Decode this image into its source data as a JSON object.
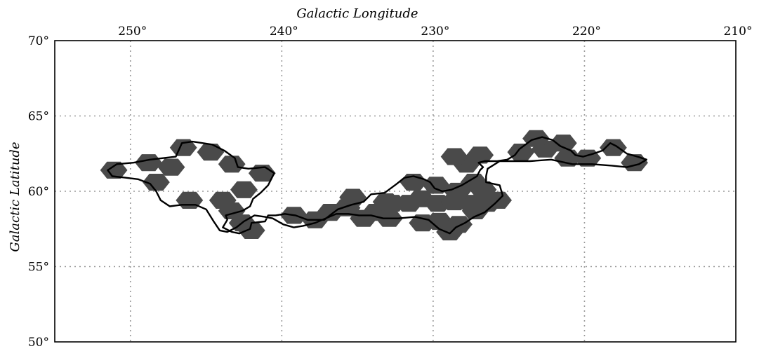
{
  "chart_data": {
    "type": "scatter",
    "projection": "sky map (longitude increases to the left)",
    "xlabel": "Galactic Longitude",
    "ylabel": "Galactic Latitude",
    "xlim": [
      255,
      210
    ],
    "ylim": [
      50,
      70
    ],
    "x_ticks": [
      250,
      240,
      230,
      220,
      210
    ],
    "y_ticks": [
      70,
      65,
      60,
      55,
      50
    ],
    "x_tick_labels": [
      "250°",
      "240°",
      "230°",
      "220°",
      "210°"
    ],
    "y_tick_labels": [
      "70°",
      "65°",
      "60°",
      "55°",
      "50°"
    ],
    "grid": true,
    "colors": {
      "field": "#4a4a4a",
      "outline": "#000000",
      "grid": "#9a9a9a"
    },
    "series": [
      {
        "role": "observed fields (hexagonal footprints)",
        "shape": "hexagon",
        "field_radius_deg": 0.9,
        "points": [
          [
            251.1,
            61.4
          ],
          [
            248.8,
            61.9
          ],
          [
            247.3,
            61.6
          ],
          [
            248.3,
            60.6
          ],
          [
            246.5,
            62.9
          ],
          [
            244.7,
            62.6
          ],
          [
            243.3,
            61.8
          ],
          [
            241.3,
            61.2
          ],
          [
            242.5,
            60.1
          ],
          [
            246.1,
            59.4
          ],
          [
            243.9,
            59.4
          ],
          [
            243.3,
            58.7
          ],
          [
            242.6,
            57.9
          ],
          [
            242.0,
            57.4
          ],
          [
            239.2,
            58.4
          ],
          [
            237.8,
            58.1
          ],
          [
            236.8,
            58.6
          ],
          [
            235.7,
            58.9
          ],
          [
            234.6,
            58.2
          ],
          [
            233.8,
            58.6
          ],
          [
            232.9,
            58.2
          ],
          [
            232.7,
            59.2
          ],
          [
            235.3,
            59.6
          ],
          [
            233.1,
            59.3
          ],
          [
            231.6,
            59.2
          ],
          [
            230.8,
            59.5
          ],
          [
            229.7,
            59.2
          ],
          [
            228.6,
            59.3
          ],
          [
            227.5,
            59.2
          ],
          [
            226.4,
            59.2
          ],
          [
            225.7,
            59.4
          ],
          [
            231.3,
            60.6
          ],
          [
            229.8,
            60.4
          ],
          [
            227.3,
            60.6
          ],
          [
            226.7,
            60.1
          ],
          [
            228.4,
            60.0
          ],
          [
            227.2,
            58.7
          ],
          [
            229.6,
            58.0
          ],
          [
            230.7,
            57.9
          ],
          [
            228.3,
            57.8
          ],
          [
            228.9,
            57.3
          ],
          [
            227.8,
            61.8
          ],
          [
            228.6,
            62.3
          ],
          [
            226.9,
            62.4
          ],
          [
            224.2,
            62.6
          ],
          [
            221.1,
            62.2
          ],
          [
            222.6,
            62.8
          ],
          [
            223.2,
            63.5
          ],
          [
            221.4,
            63.2
          ],
          [
            219.8,
            62.2
          ],
          [
            218.1,
            62.9
          ],
          [
            216.7,
            61.9
          ]
        ]
      },
      {
        "role": "survey footprint outline",
        "points": [
          [
            251.5,
            61.4
          ],
          [
            250.9,
            61.8
          ],
          [
            249.8,
            61.9
          ],
          [
            248.7,
            62.1
          ],
          [
            247.0,
            62.3
          ],
          [
            246.6,
            63.2
          ],
          [
            245.9,
            63.3
          ],
          [
            244.6,
            63.1
          ],
          [
            243.8,
            62.7
          ],
          [
            243.1,
            62.2
          ],
          [
            242.9,
            61.6
          ],
          [
            242.2,
            61.5
          ],
          [
            241.1,
            61.6
          ],
          [
            240.5,
            61.2
          ],
          [
            240.7,
            60.8
          ],
          [
            240.9,
            60.4
          ],
          [
            241.4,
            59.9
          ],
          [
            241.9,
            59.5
          ],
          [
            242.1,
            59.0
          ],
          [
            242.6,
            58.7
          ],
          [
            243.7,
            58.4
          ],
          [
            243.6,
            58.1
          ],
          [
            243.9,
            57.6
          ],
          [
            243.3,
            57.3
          ],
          [
            242.8,
            57.2
          ],
          [
            242.1,
            57.5
          ],
          [
            242.0,
            57.9
          ],
          [
            241.1,
            58.0
          ],
          [
            240.9,
            58.4
          ],
          [
            240.4,
            58.4
          ],
          [
            239.8,
            58.5
          ],
          [
            239.1,
            58.4
          ],
          [
            238.3,
            58.1
          ],
          [
            237.2,
            58.1
          ],
          [
            236.7,
            58.5
          ],
          [
            236.3,
            58.8
          ],
          [
            235.4,
            59.1
          ],
          [
            234.6,
            59.3
          ],
          [
            234.1,
            59.8
          ],
          [
            233.2,
            59.9
          ],
          [
            232.4,
            60.5
          ],
          [
            231.9,
            60.9
          ],
          [
            231.3,
            61.0
          ],
          [
            230.6,
            60.8
          ],
          [
            230.2,
            60.6
          ],
          [
            229.9,
            60.2
          ],
          [
            229.4,
            60.0
          ],
          [
            228.8,
            60.1
          ],
          [
            228.1,
            60.4
          ],
          [
            227.6,
            60.7
          ],
          [
            227.1,
            61.0
          ],
          [
            226.9,
            61.4
          ],
          [
            226.7,
            61.6
          ],
          [
            227.0,
            61.9
          ],
          [
            226.6,
            62.0
          ],
          [
            225.8,
            62.0
          ],
          [
            225.1,
            62.1
          ],
          [
            224.6,
            62.4
          ],
          [
            224.3,
            62.8
          ],
          [
            223.5,
            63.4
          ],
          [
            222.8,
            63.6
          ],
          [
            222.1,
            63.4
          ],
          [
            221.6,
            63.0
          ],
          [
            220.9,
            62.7
          ],
          [
            220.6,
            62.4
          ],
          [
            220.1,
            62.3
          ],
          [
            219.4,
            62.5
          ],
          [
            218.8,
            62.7
          ],
          [
            218.3,
            63.2
          ],
          [
            217.9,
            63.0
          ],
          [
            217.2,
            62.5
          ],
          [
            216.5,
            62.3
          ],
          [
            215.9,
            62.1
          ],
          [
            216.4,
            61.8
          ],
          [
            217.2,
            61.6
          ],
          [
            218.2,
            61.7
          ],
          [
            219.5,
            61.8
          ],
          [
            220.8,
            61.8
          ],
          [
            222.2,
            62.1
          ],
          [
            223.6,
            62.0
          ],
          [
            224.7,
            62.0
          ],
          [
            225.6,
            62.0
          ],
          [
            226.4,
            61.5
          ],
          [
            226.5,
            61.0
          ],
          [
            226.5,
            60.6
          ],
          [
            225.6,
            60.4
          ],
          [
            225.4,
            59.7
          ],
          [
            225.9,
            59.2
          ],
          [
            226.6,
            58.6
          ],
          [
            227.3,
            58.3
          ],
          [
            227.9,
            57.9
          ],
          [
            228.5,
            57.6
          ],
          [
            228.9,
            57.2
          ],
          [
            229.6,
            57.5
          ],
          [
            230.3,
            58.1
          ],
          [
            231.2,
            58.3
          ],
          [
            232.3,
            58.2
          ],
          [
            233.3,
            58.2
          ],
          [
            234.1,
            58.4
          ],
          [
            234.9,
            58.4
          ],
          [
            235.6,
            58.5
          ],
          [
            236.4,
            58.5
          ],
          [
            237.1,
            58.2
          ],
          [
            237.8,
            57.9
          ],
          [
            238.6,
            57.7
          ],
          [
            239.2,
            57.6
          ],
          [
            239.9,
            57.8
          ],
          [
            240.6,
            58.2
          ],
          [
            241.1,
            58.3
          ],
          [
            241.8,
            58.4
          ],
          [
            242.5,
            58.0
          ],
          [
            243.0,
            57.6
          ],
          [
            243.6,
            57.3
          ],
          [
            244.1,
            57.4
          ],
          [
            244.5,
            58.0
          ],
          [
            245.0,
            58.8
          ],
          [
            245.7,
            59.1
          ],
          [
            246.6,
            59.1
          ],
          [
            247.4,
            59.0
          ],
          [
            248.0,
            59.4
          ],
          [
            248.3,
            60.0
          ],
          [
            248.7,
            60.5
          ],
          [
            249.5,
            60.8
          ],
          [
            250.3,
            60.9
          ],
          [
            251.2,
            61.0
          ]
        ]
      }
    ]
  }
}
